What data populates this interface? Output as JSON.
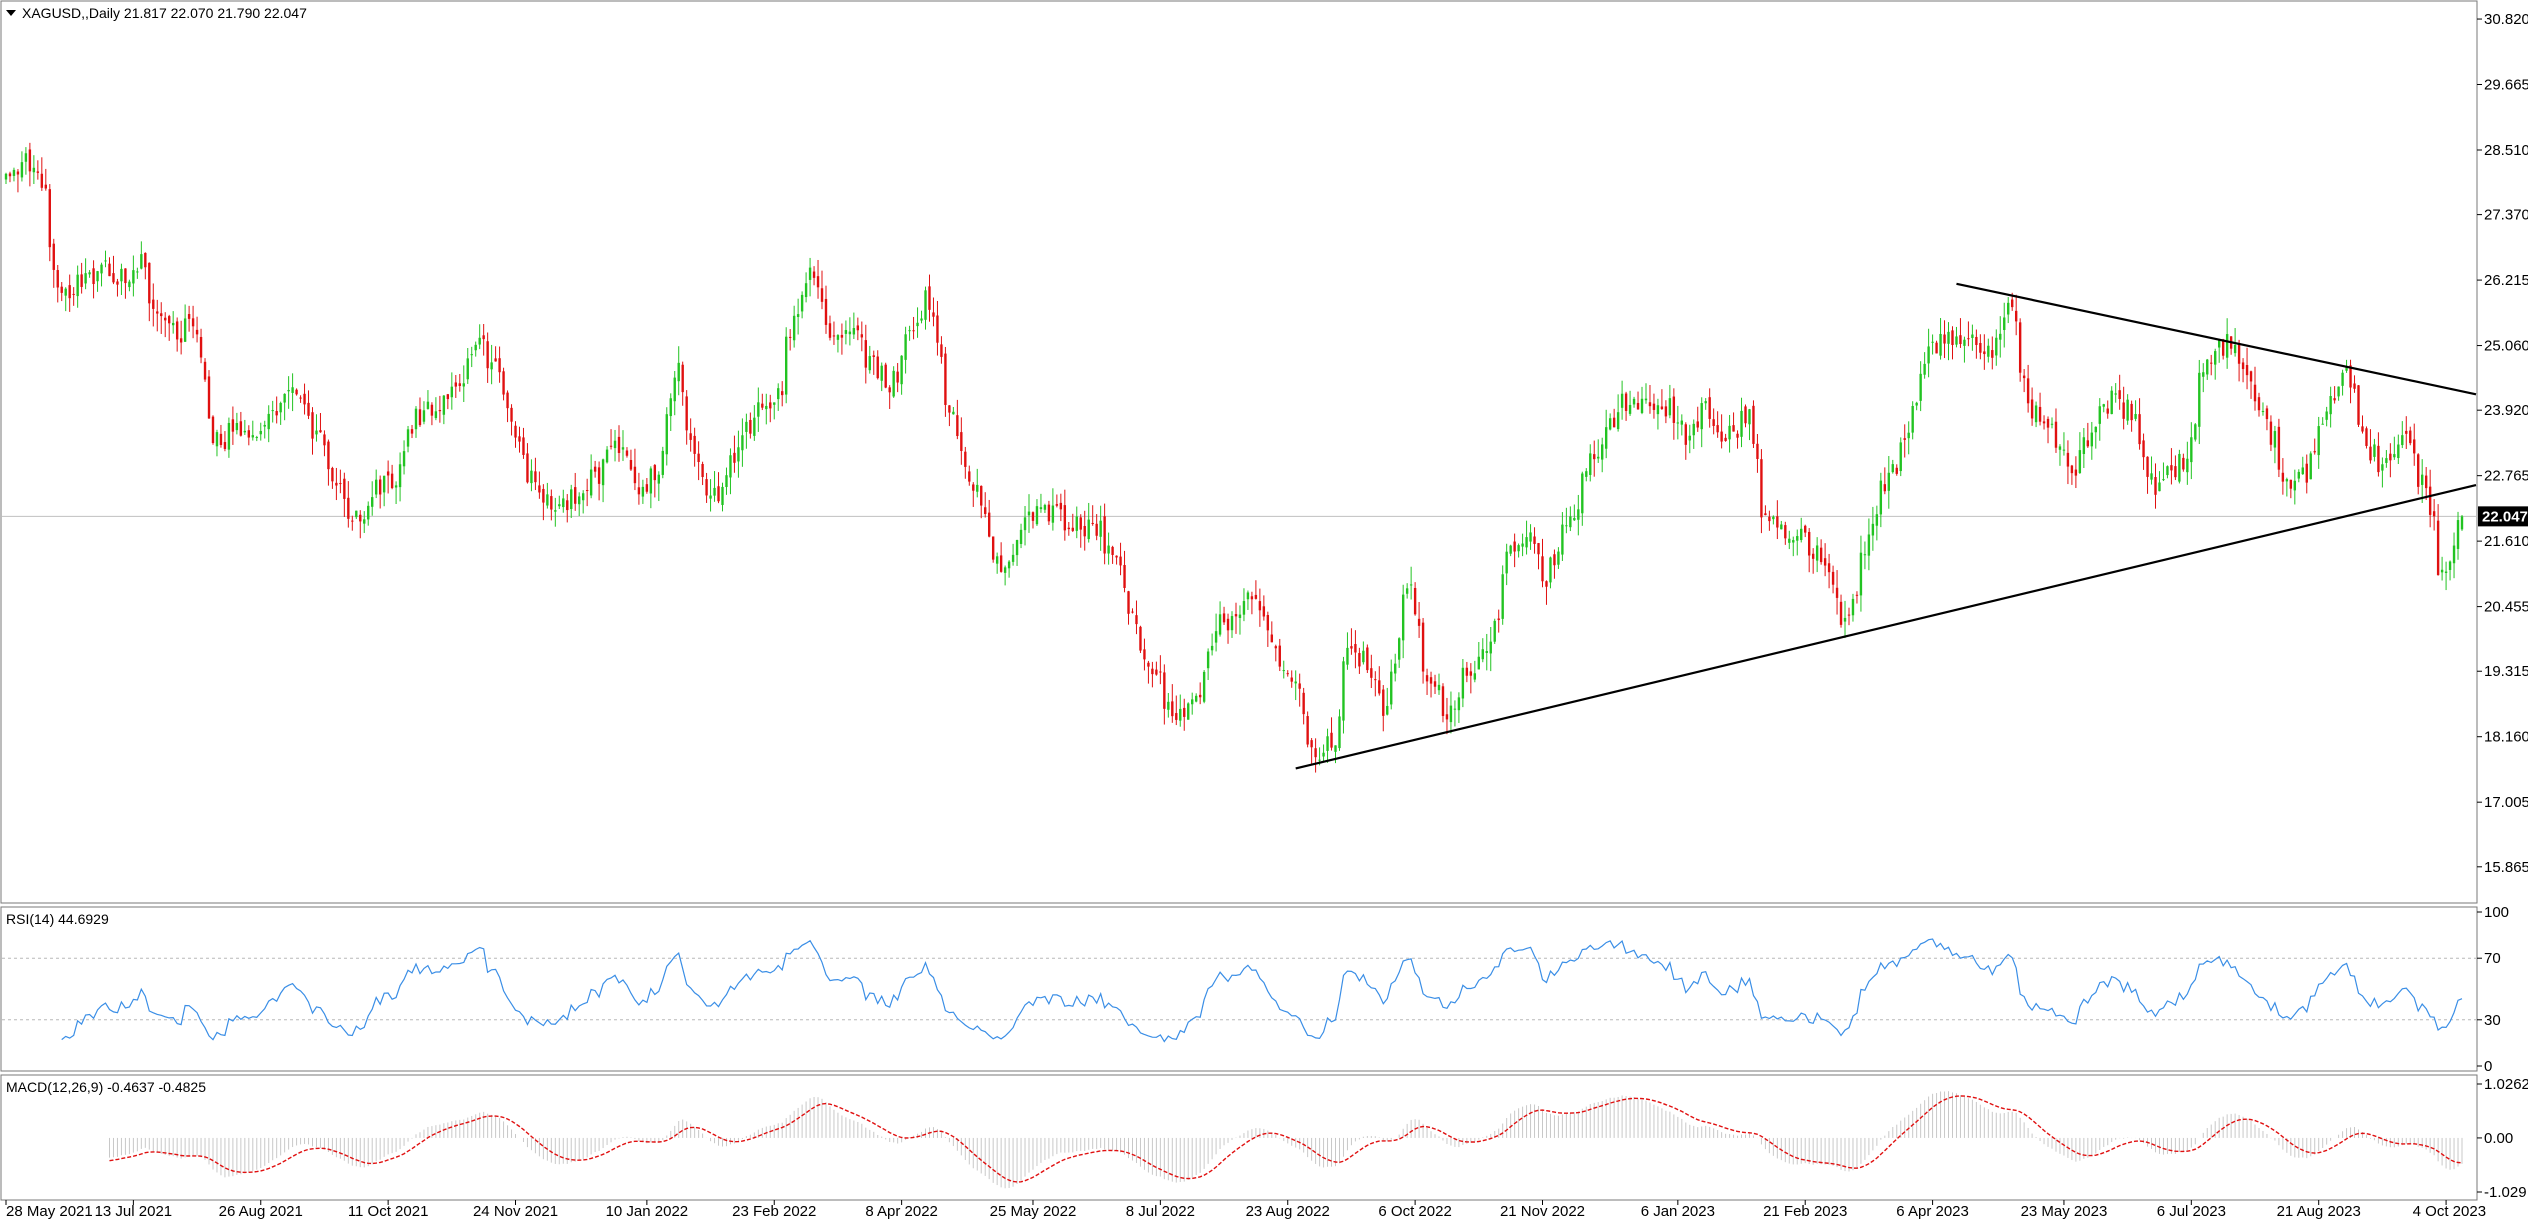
{
  "chart_data": {
    "type": "candlestick",
    "symbol": "XAGUSD",
    "timeframe": "Daily",
    "header_text": "XAGUSD,,Daily  21.817 22.070 21.790 22.047",
    "last_ohlc": {
      "open": 21.817,
      "high": 22.07,
      "low": 21.79,
      "close": 22.047
    },
    "current_price": "22.047",
    "y_ticks": [
      "30.820",
      "29.665",
      "28.510",
      "27.370",
      "26.215",
      "25.060",
      "23.920",
      "22.765",
      "21.610",
      "20.455",
      "19.315",
      "18.160",
      "17.005",
      "15.865"
    ],
    "y_range": [
      15.35,
      31.05
    ],
    "x_ticks": [
      "28 May 2021",
      "13 Jul 2021",
      "26 Aug 2021",
      "11 Oct 2021",
      "24 Nov 2021",
      "10 Jan 2022",
      "23 Feb 2022",
      "8 Apr 2022",
      "25 May 2022",
      "8 Jul 2022",
      "23 Aug 2022",
      "6 Oct 2022",
      "21 Nov 2022",
      "6 Jan 2023",
      "21 Feb 2023",
      "6 Apr 2023",
      "23 May 2023",
      "6 Jul 2023",
      "21 Aug 2023",
      "4 Oct 2023"
    ],
    "price_anchors": [
      {
        "date": "2021-05-28",
        "close": 28.1
      },
      {
        "date": "2021-06-03",
        "close": 28.3
      },
      {
        "date": "2021-06-10",
        "close": 27.9
      },
      {
        "date": "2021-06-17",
        "close": 26.0
      },
      {
        "date": "2021-06-25",
        "close": 26.2
      },
      {
        "date": "2021-07-02",
        "close": 26.4
      },
      {
        "date": "2021-07-09",
        "close": 26.2
      },
      {
        "date": "2021-07-15",
        "close": 26.5
      },
      {
        "date": "2021-07-22",
        "close": 25.4
      },
      {
        "date": "2021-07-29",
        "close": 25.3
      },
      {
        "date": "2021-08-03",
        "close": 25.6
      },
      {
        "date": "2021-08-10",
        "close": 23.3
      },
      {
        "date": "2021-08-17",
        "close": 23.6
      },
      {
        "date": "2021-08-24",
        "close": 23.5
      },
      {
        "date": "2021-09-01",
        "close": 24.0
      },
      {
        "date": "2021-09-07",
        "close": 24.5
      },
      {
        "date": "2021-09-14",
        "close": 23.6
      },
      {
        "date": "2021-09-22",
        "close": 22.6
      },
      {
        "date": "2021-09-29",
        "close": 22.0
      },
      {
        "date": "2021-10-06",
        "close": 22.6
      },
      {
        "date": "2021-10-13",
        "close": 22.7
      },
      {
        "date": "2021-10-20",
        "close": 23.8
      },
      {
        "date": "2021-10-28",
        "close": 24.1
      },
      {
        "date": "2021-11-05",
        "close": 24.3
      },
      {
        "date": "2021-11-12",
        "close": 25.2
      },
      {
        "date": "2021-11-19",
        "close": 24.4
      },
      {
        "date": "2021-11-26",
        "close": 23.2
      },
      {
        "date": "2021-12-03",
        "close": 22.4
      },
      {
        "date": "2021-12-10",
        "close": 22.2
      },
      {
        "date": "2021-12-17",
        "close": 22.4
      },
      {
        "date": "2021-12-24",
        "close": 22.9
      },
      {
        "date": "2021-12-31",
        "close": 23.3
      },
      {
        "date": "2022-01-07",
        "close": 22.4
      },
      {
        "date": "2022-01-14",
        "close": 23.0
      },
      {
        "date": "2022-01-20",
        "close": 24.6
      },
      {
        "date": "2022-01-27",
        "close": 22.9
      },
      {
        "date": "2022-02-03",
        "close": 22.4
      },
      {
        "date": "2022-02-10",
        "close": 23.2
      },
      {
        "date": "2022-02-17",
        "close": 23.9
      },
      {
        "date": "2022-02-24",
        "close": 24.1
      },
      {
        "date": "2022-03-01",
        "close": 25.3
      },
      {
        "date": "2022-03-08",
        "close": 26.4
      },
      {
        "date": "2022-03-15",
        "close": 25.1
      },
      {
        "date": "2022-03-22",
        "close": 25.3
      },
      {
        "date": "2022-03-29",
        "close": 24.8
      },
      {
        "date": "2022-04-05",
        "close": 24.3
      },
      {
        "date": "2022-04-12",
        "close": 25.3
      },
      {
        "date": "2022-04-18",
        "close": 26.0
      },
      {
        "date": "2022-04-25",
        "close": 24.1
      },
      {
        "date": "2022-05-02",
        "close": 22.8
      },
      {
        "date": "2022-05-09",
        "close": 22.0
      },
      {
        "date": "2022-05-13",
        "close": 20.9
      },
      {
        "date": "2022-05-20",
        "close": 21.7
      },
      {
        "date": "2022-05-27",
        "close": 22.1
      },
      {
        "date": "2022-06-03",
        "close": 22.1
      },
      {
        "date": "2022-06-10",
        "close": 21.8
      },
      {
        "date": "2022-06-17",
        "close": 21.9
      },
      {
        "date": "2022-06-24",
        "close": 21.2
      },
      {
        "date": "2022-07-01",
        "close": 19.8
      },
      {
        "date": "2022-07-08",
        "close": 19.2
      },
      {
        "date": "2022-07-14",
        "close": 18.4
      },
      {
        "date": "2022-07-21",
        "close": 18.7
      },
      {
        "date": "2022-07-28",
        "close": 20.1
      },
      {
        "date": "2022-08-04",
        "close": 20.2
      },
      {
        "date": "2022-08-11",
        "close": 20.7
      },
      {
        "date": "2022-08-18",
        "close": 19.6
      },
      {
        "date": "2022-08-25",
        "close": 19.1
      },
      {
        "date": "2022-09-01",
        "close": 17.8
      },
      {
        "date": "2022-09-08",
        "close": 18.2
      },
      {
        "date": "2022-09-13",
        "close": 19.6
      },
      {
        "date": "2022-09-20",
        "close": 19.5
      },
      {
        "date": "2022-09-26",
        "close": 18.5
      },
      {
        "date": "2022-10-04",
        "close": 20.9
      },
      {
        "date": "2022-10-11",
        "close": 19.2
      },
      {
        "date": "2022-10-18",
        "close": 18.6
      },
      {
        "date": "2022-10-25",
        "close": 19.3
      },
      {
        "date": "2022-11-01",
        "close": 19.6
      },
      {
        "date": "2022-11-08",
        "close": 21.4
      },
      {
        "date": "2022-11-15",
        "close": 21.7
      },
      {
        "date": "2022-11-22",
        "close": 21.0
      },
      {
        "date": "2022-11-30",
        "close": 22.0
      },
      {
        "date": "2022-12-07",
        "close": 23.0
      },
      {
        "date": "2022-12-13",
        "close": 23.6
      },
      {
        "date": "2022-12-20",
        "close": 24.1
      },
      {
        "date": "2022-12-27",
        "close": 24.0
      },
      {
        "date": "2023-01-03",
        "close": 24.0
      },
      {
        "date": "2023-01-10",
        "close": 23.5
      },
      {
        "date": "2023-01-17",
        "close": 23.9
      },
      {
        "date": "2023-01-24",
        "close": 23.5
      },
      {
        "date": "2023-02-01",
        "close": 23.8
      },
      {
        "date": "2023-02-06",
        "close": 22.2
      },
      {
        "date": "2023-02-14",
        "close": 21.8
      },
      {
        "date": "2023-02-21",
        "close": 21.6
      },
      {
        "date": "2023-02-28",
        "close": 21.0
      },
      {
        "date": "2023-03-07",
        "close": 20.1
      },
      {
        "date": "2023-03-13",
        "close": 21.3
      },
      {
        "date": "2023-03-20",
        "close": 22.6
      },
      {
        "date": "2023-03-27",
        "close": 23.2
      },
      {
        "date": "2023-04-04",
        "close": 24.9
      },
      {
        "date": "2023-04-11",
        "close": 25.3
      },
      {
        "date": "2023-04-14",
        "close": 25.1
      },
      {
        "date": "2023-04-19",
        "close": 25.2
      },
      {
        "date": "2023-04-26",
        "close": 24.9
      },
      {
        "date": "2023-05-04",
        "close": 25.8
      },
      {
        "date": "2023-05-10",
        "close": 24.0
      },
      {
        "date": "2023-05-17",
        "close": 23.6
      },
      {
        "date": "2023-05-25",
        "close": 22.9
      },
      {
        "date": "2023-06-01",
        "close": 23.4
      },
      {
        "date": "2023-06-08",
        "close": 24.1
      },
      {
        "date": "2023-06-15",
        "close": 23.9
      },
      {
        "date": "2023-06-22",
        "close": 22.6
      },
      {
        "date": "2023-06-29",
        "close": 22.8
      },
      {
        "date": "2023-07-05",
        "close": 23.1
      },
      {
        "date": "2023-07-12",
        "close": 24.9
      },
      {
        "date": "2023-07-19",
        "close": 25.1
      },
      {
        "date": "2023-07-26",
        "close": 24.4
      },
      {
        "date": "2023-08-02",
        "close": 23.6
      },
      {
        "date": "2023-08-09",
        "close": 22.7
      },
      {
        "date": "2023-08-16",
        "close": 22.8
      },
      {
        "date": "2023-08-23",
        "close": 24.0
      },
      {
        "date": "2023-08-30",
        "close": 24.6
      },
      {
        "date": "2023-09-06",
        "close": 23.3
      },
      {
        "date": "2023-09-13",
        "close": 22.9
      },
      {
        "date": "2023-09-20",
        "close": 23.4
      },
      {
        "date": "2023-09-27",
        "close": 22.5
      },
      {
        "date": "2023-10-03",
        "close": 20.9
      },
      {
        "date": "2023-10-06",
        "close": 21.4
      },
      {
        "date": "2023-10-10",
        "close": 22.047
      }
    ],
    "trendlines": [
      {
        "name": "support",
        "from": {
          "date": "2022-08-25",
          "price": 17.6
        },
        "to": {
          "date": "2023-10-10",
          "price": 22.6
        }
      },
      {
        "name": "resistance",
        "from": {
          "date": "2023-04-14",
          "price": 26.15
        },
        "to": {
          "date": "2023-10-10",
          "price": 24.2
        }
      }
    ],
    "rsi": {
      "label": "RSI(14) 44.6929",
      "y_ticks": [
        "100",
        "70",
        "30",
        "0"
      ],
      "levels": [
        70,
        30
      ]
    },
    "macd": {
      "label": "MACD(12,26,9) -0.4637 -0.4825",
      "y_ticks": [
        "1.0262",
        "0.00",
        "-1.029"
      ]
    },
    "colors": {
      "bull": "#22c322",
      "bear": "#e01010",
      "rsi_line": "#3a8ee6",
      "signal_line": "#e01010",
      "histogram": "#c8c8c8",
      "trendline": "#000000"
    }
  }
}
